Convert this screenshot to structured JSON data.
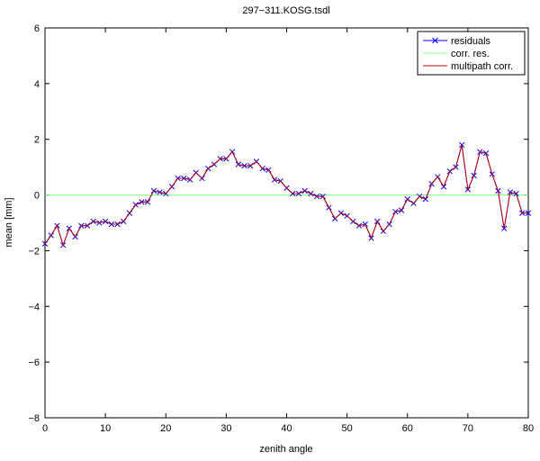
{
  "chart_data": {
    "type": "line",
    "title": "297−311.KOSG.tsdl",
    "xlabel": "zenith angle",
    "ylabel": "mean  [mm]",
    "xlim": [
      0,
      80
    ],
    "ylim": [
      -8,
      6
    ],
    "xticks": [
      "0",
      "10",
      "20",
      "30",
      "40",
      "50",
      "60",
      "70",
      "80"
    ],
    "yticks": [
      "−8",
      "−6",
      "−4",
      "−2",
      "0",
      "2",
      "4",
      "6"
    ],
    "grid": false,
    "legend_position": "top-right",
    "series": [
      {
        "name": "residuals",
        "color": "#0000ff",
        "marker": "x",
        "x": [
          0,
          1,
          2,
          3,
          4,
          5,
          6,
          7,
          8,
          9,
          10,
          11,
          12,
          13,
          14,
          15,
          16,
          17,
          18,
          19,
          20,
          21,
          22,
          23,
          24,
          25,
          26,
          27,
          28,
          29,
          30,
          31,
          32,
          33,
          34,
          35,
          36,
          37,
          38,
          39,
          40,
          41,
          42,
          43,
          44,
          45,
          46,
          47,
          48,
          49,
          50,
          51,
          52,
          53,
          54,
          55,
          56,
          57,
          58,
          59,
          60,
          61,
          62,
          63,
          64,
          65,
          66,
          67,
          68,
          69,
          70,
          71,
          72,
          73,
          74,
          75,
          76,
          77,
          78,
          79,
          80
        ],
        "y": [
          -1.75,
          -1.45,
          -1.1,
          -1.8,
          -1.2,
          -1.5,
          -1.1,
          -1.1,
          -0.95,
          -1.0,
          -0.95,
          -1.05,
          -1.05,
          -0.95,
          -0.65,
          -0.35,
          -0.25,
          -0.25,
          0.15,
          0.1,
          0.05,
          0.3,
          0.6,
          0.6,
          0.55,
          0.8,
          0.6,
          0.95,
          1.1,
          1.3,
          1.3,
          1.55,
          1.1,
          1.05,
          1.05,
          1.2,
          0.95,
          0.9,
          0.55,
          0.5,
          0.25,
          0.05,
          0.05,
          0.15,
          0.05,
          -0.05,
          -0.05,
          -0.45,
          -0.85,
          -0.65,
          -0.75,
          -0.95,
          -1.1,
          -1.05,
          -1.55,
          -0.95,
          -1.3,
          -1.05,
          -0.6,
          -0.55,
          -0.15,
          -0.3,
          -0.05,
          -0.15,
          0.4,
          0.65,
          0.3,
          0.85,
          1.0,
          1.8,
          0.2,
          0.7,
          1.55,
          1.5,
          0.75,
          0.15,
          -1.2,
          0.1,
          0.05,
          -0.65,
          -0.65
        ]
      },
      {
        "name": "corr. res.",
        "color": "#80ff80",
        "marker": "none",
        "x": [
          0,
          80
        ],
        "y": [
          0,
          0
        ]
      },
      {
        "name": "multipath corr.",
        "color": "#c00000",
        "marker": "none",
        "x": [
          0,
          1,
          2,
          3,
          4,
          5,
          6,
          7,
          8,
          9,
          10,
          11,
          12,
          13,
          14,
          15,
          16,
          17,
          18,
          19,
          20,
          21,
          22,
          23,
          24,
          25,
          26,
          27,
          28,
          29,
          30,
          31,
          32,
          33,
          34,
          35,
          36,
          37,
          38,
          39,
          40,
          41,
          42,
          43,
          44,
          45,
          46,
          47,
          48,
          49,
          50,
          51,
          52,
          53,
          54,
          55,
          56,
          57,
          58,
          59,
          60,
          61,
          62,
          63,
          64,
          65,
          66,
          67,
          68,
          69,
          70,
          71,
          72,
          73,
          74,
          75,
          76,
          77,
          78,
          79,
          80
        ],
        "y": [
          -1.75,
          -1.45,
          -1.1,
          -1.8,
          -1.2,
          -1.5,
          -1.1,
          -1.1,
          -0.95,
          -1.0,
          -0.95,
          -1.05,
          -1.05,
          -0.95,
          -0.65,
          -0.35,
          -0.25,
          -0.25,
          0.15,
          0.1,
          0.05,
          0.3,
          0.6,
          0.6,
          0.55,
          0.8,
          0.6,
          0.95,
          1.1,
          1.3,
          1.3,
          1.55,
          1.1,
          1.05,
          1.05,
          1.2,
          0.95,
          0.9,
          0.55,
          0.5,
          0.25,
          0.05,
          0.05,
          0.15,
          0.05,
          -0.05,
          -0.05,
          -0.45,
          -0.85,
          -0.65,
          -0.75,
          -0.95,
          -1.1,
          -1.05,
          -1.55,
          -0.95,
          -1.3,
          -1.05,
          -0.6,
          -0.55,
          -0.15,
          -0.3,
          -0.05,
          -0.15,
          0.4,
          0.65,
          0.3,
          0.85,
          1.0,
          1.8,
          0.2,
          0.7,
          1.55,
          1.5,
          0.75,
          0.15,
          -1.2,
          0.1,
          0.05,
          -0.65,
          -0.65
        ]
      }
    ]
  }
}
